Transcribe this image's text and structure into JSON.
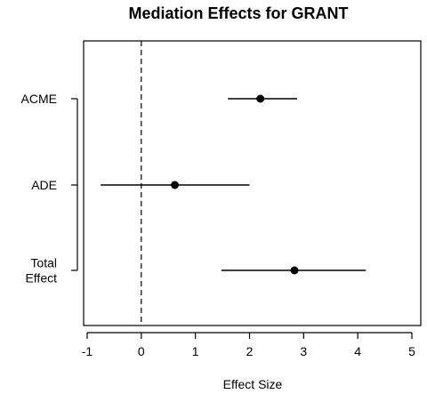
{
  "chart_data": {
    "type": "scatter",
    "title": "Mediation Effects for GRANT",
    "xlabel": "Effect Size",
    "ylabel": "",
    "xlim": [
      -1,
      5
    ],
    "x_ticks": [
      -1,
      0,
      1,
      2,
      3,
      4,
      5
    ],
    "reference_line_x": 0,
    "grid": false,
    "categories": [
      "ACME",
      "ADE",
      "Total Effect"
    ],
    "category_label_lines": [
      [
        "ACME"
      ],
      [
        "ADE"
      ],
      [
        "Total",
        "Effect"
      ]
    ],
    "estimates": [
      2.2,
      0.62,
      2.83
    ],
    "ci_lower": [
      1.6,
      -0.75,
      1.48
    ],
    "ci_upper": [
      2.88,
      2.0,
      4.15
    ]
  },
  "colors": {
    "point": "#000000",
    "interval": "#000000",
    "axis": "#000000",
    "reference_line": "#000000"
  }
}
